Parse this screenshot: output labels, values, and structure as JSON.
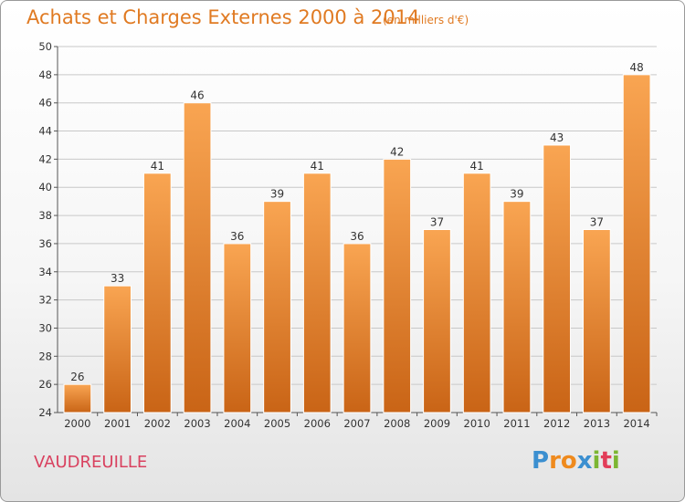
{
  "header": {
    "title": "Achats et Charges Externes 2000 à 2014",
    "subtitle": "(en milliers d'€)"
  },
  "footer": {
    "city": "VAUDREUILLE",
    "logo": {
      "letters": [
        "P",
        "r",
        "o",
        "x",
        "i",
        "t",
        "i"
      ],
      "colors": [
        "#3b8fd0",
        "#ef8a1d",
        "#ef8a1d",
        "#3b8fd0",
        "#7cb632",
        "#e23d59",
        "#7cb632"
      ]
    }
  },
  "colors": {
    "bar_light": "#f9a552",
    "bar_dark": "#c96416",
    "grid": "#c8c8c8"
  },
  "chart_data": {
    "type": "bar",
    "categories": [
      "2000",
      "2001",
      "2002",
      "2003",
      "2004",
      "2005",
      "2006",
      "2007",
      "2008",
      "2009",
      "2010",
      "2011",
      "2012",
      "2013",
      "2014"
    ],
    "values": [
      26,
      33,
      41,
      46,
      36,
      39,
      41,
      36,
      42,
      37,
      41,
      39,
      43,
      37,
      48
    ],
    "ylim": [
      24,
      50
    ],
    "yticks": [
      24,
      26,
      28,
      30,
      32,
      34,
      36,
      38,
      40,
      42,
      44,
      46,
      48,
      50
    ],
    "grid": true
  }
}
